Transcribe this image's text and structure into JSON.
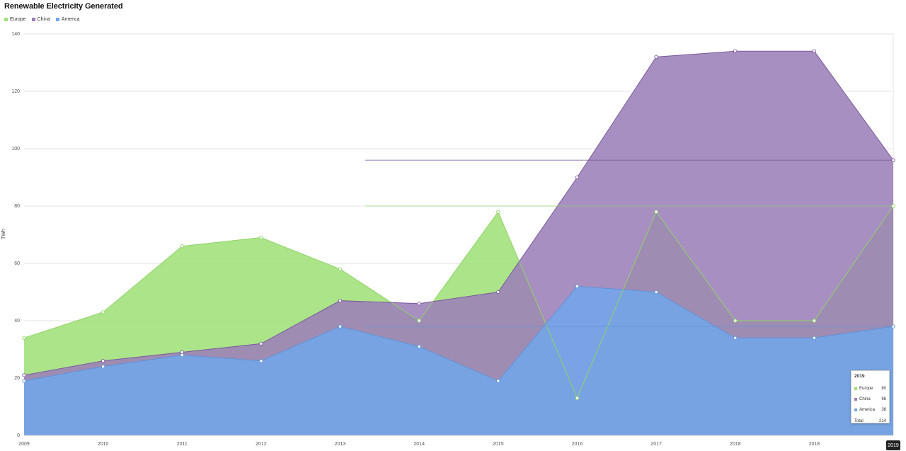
{
  "chart_data": {
    "type": "area",
    "title": "Renewable Electricity Generated",
    "ylabel": "TWh",
    "xlabel": "",
    "ylim": [
      0,
      140
    ],
    "yticks": [
      0,
      20,
      40,
      60,
      80,
      100,
      120,
      140
    ],
    "categories": [
      "2009",
      "2010",
      "2011",
      "2012",
      "2013",
      "2014",
      "2015",
      "2016",
      "2017",
      "2018",
      "2018",
      "2019"
    ],
    "series": [
      {
        "name": "Europe",
        "color": "#a0e07a",
        "values": [
          34,
          43,
          66,
          69,
          58,
          40,
          78,
          13,
          78,
          40,
          40,
          80
        ]
      },
      {
        "name": "China",
        "color": "#9c7fb8",
        "values": [
          21,
          26,
          29,
          32,
          47,
          46,
          50,
          90,
          132,
          134,
          134,
          96
        ]
      },
      {
        "name": "America",
        "color": "#72a6e8",
        "values": [
          19,
          24,
          28,
          26,
          38,
          31,
          19,
          52,
          50,
          34,
          34,
          38
        ]
      }
    ],
    "grid": true,
    "legend_position": "top-left"
  },
  "tooltip": {
    "title": "2019",
    "rows": [
      {
        "name": "Europe",
        "value": "80",
        "color": "#a0e07a"
      },
      {
        "name": "China",
        "value": "96",
        "color": "#9c7fb8"
      },
      {
        "name": "America",
        "value": "38",
        "color": "#72a6e8"
      }
    ],
    "total_label": "Total",
    "total_value": "214"
  },
  "hover_x_label": "2019"
}
